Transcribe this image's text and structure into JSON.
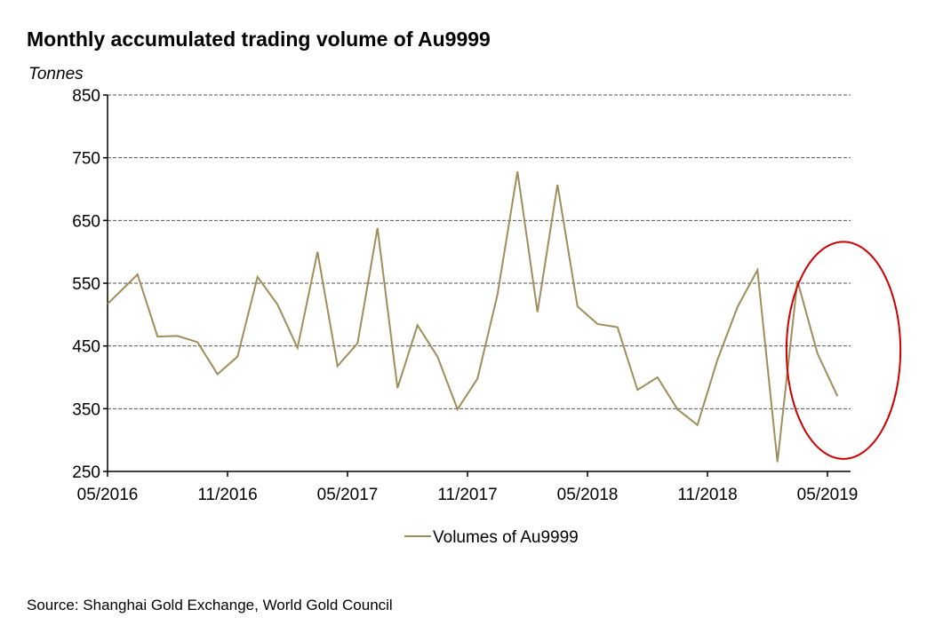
{
  "chart_data": {
    "type": "line",
    "title": "Monthly accumulated trading volume of Au9999",
    "ylabel": "Tonnes",
    "xlabel": "",
    "ylim": [
      250,
      850
    ],
    "yticks": [
      250,
      350,
      450,
      550,
      650,
      750,
      850
    ],
    "ytick_labels": [
      "250",
      "350",
      "450",
      "550",
      "650",
      "750",
      "850"
    ],
    "grid": true,
    "x_unit": "months since 05/2016",
    "xlim": [
      0,
      37
    ],
    "xticks": [
      0,
      6,
      12,
      18,
      24,
      30,
      36
    ],
    "xtick_labels": [
      "05/2016",
      "11/2016",
      "05/2017",
      "11/2017",
      "05/2018",
      "11/2018",
      "05/2019"
    ],
    "series": [
      {
        "name": "Volumes of Au9999",
        "color": "#a08d5c",
        "x": [
          0,
          1.5,
          2.5,
          3.5,
          4.5,
          5.5,
          6.5,
          7.5,
          8.5,
          9.5,
          10.5,
          11.5,
          12.5,
          13.5,
          14.5,
          15.5,
          16.5,
          17.5,
          18.5,
          19.5,
          20.5,
          21.5,
          22.5,
          23.5,
          24.5,
          25.5,
          26.5,
          27.5,
          28.5,
          29.5,
          30.5,
          31.5,
          32.5,
          33.5,
          34.5,
          35.5,
          36.5
        ],
        "values": [
          517,
          564,
          465,
          466,
          456,
          405,
          433,
          560,
          516,
          447,
          600,
          418,
          454,
          638,
          383,
          483,
          433,
          349,
          398,
          532,
          728,
          504,
          707,
          513,
          485,
          480,
          380,
          400,
          349,
          324,
          428,
          512,
          571,
          265,
          554,
          438,
          370
        ]
      }
    ],
    "legend": "bottom-center",
    "annotation": {
      "type": "ellipse",
      "color": "#cc0000",
      "x_center": 36.8,
      "y_center": 443,
      "x_radius": 2.85,
      "y_radius": 173
    }
  },
  "source": "Source: Shanghai Gold Exchange,  World Gold Council"
}
